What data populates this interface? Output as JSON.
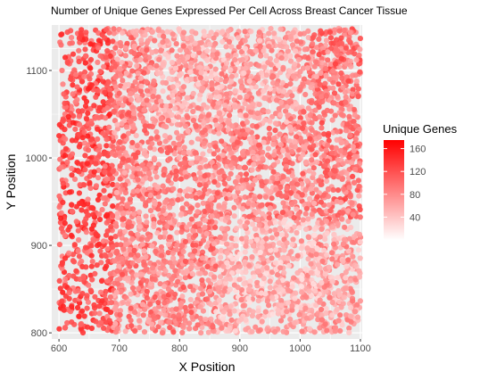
{
  "chart_data": {
    "type": "scatter",
    "title": "Number of Unique Genes Expressed Per Cell Across Breast Cancer Tissue",
    "xlabel": "X Position",
    "ylabel": "Y Position",
    "xlim": [
      588,
      1103
    ],
    "ylim": [
      793,
      1152
    ],
    "x_ticks": [
      600,
      700,
      800,
      900,
      1000,
      1100
    ],
    "y_ticks": [
      800,
      900,
      1000,
      1100
    ],
    "x_tick_labels": [
      "600",
      "700",
      "800",
      "900",
      "1000",
      "1100"
    ],
    "y_tick_labels": [
      "800",
      "900",
      "1000",
      "1100"
    ],
    "data_extent": {
      "x": [
        600,
        1100
      ],
      "y": [
        800,
        1148
      ]
    },
    "grid": true,
    "panel_background": "#ebebeb",
    "grid_color": "#ffffff",
    "legend": {
      "title": "Unique Genes",
      "placement": "right",
      "range": [
        0,
        175
      ],
      "breaks": [
        40,
        80,
        120,
        160
      ],
      "break_labels": [
        "40",
        "80",
        "120",
        "160"
      ],
      "low_color": "#ffffff",
      "high_color": "#ff0000"
    },
    "point_color_scale": {
      "low": "#ffffff",
      "high": "#ff0000"
    },
    "value_summary": "dense field of cells; values mostly 40-120, higher along left edge, lower in lower-right region"
  }
}
